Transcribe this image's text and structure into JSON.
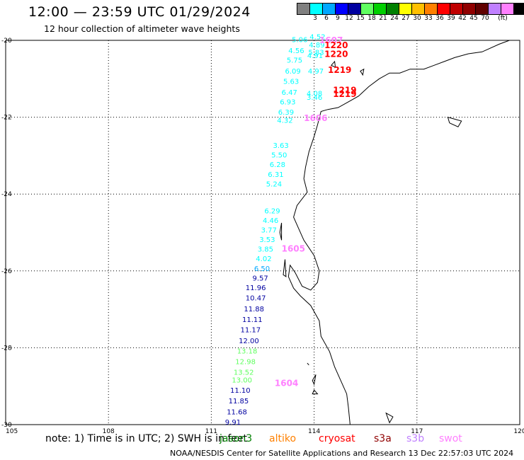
{
  "header": {
    "title": "12:00 — 23:59 UTC 01/29/2024",
    "subtitle": "12 hour collection of altimeter wave heights"
  },
  "legend": {
    "unit": "(ft)",
    "entries": [
      {
        "label": "",
        "color": "#808080"
      },
      {
        "label": "3",
        "color": "#00ffff"
      },
      {
        "label": "6",
        "color": "#00a8ff"
      },
      {
        "label": "9",
        "color": "#0000ff"
      },
      {
        "label": "12",
        "color": "#0000a0"
      },
      {
        "label": "15",
        "color": "#60ff60"
      },
      {
        "label": "18",
        "color": "#00d000"
      },
      {
        "label": "21",
        "color": "#008000"
      },
      {
        "label": "24",
        "color": "#ffff00"
      },
      {
        "label": "27",
        "color": "#ffc000"
      },
      {
        "label": "30",
        "color": "#ff8000"
      },
      {
        "label": "33",
        "color": "#ff0000"
      },
      {
        "label": "36",
        "color": "#c00000"
      },
      {
        "label": "39",
        "color": "#900000"
      },
      {
        "label": "42",
        "color": "#600000"
      },
      {
        "label": "45",
        "color": "#c080ff"
      },
      {
        "label": "70",
        "color": "#ff80ff"
      },
      {
        "label": "",
        "color": "#000000"
      }
    ]
  },
  "map": {
    "lon_range": [
      105,
      120
    ],
    "lat_range": [
      -30,
      -20
    ],
    "lon_ticks": [
      "105",
      "108",
      "111",
      "114",
      "117",
      "120"
    ],
    "lat_ticks": [
      "-20",
      "-22",
      "-24",
      "-26",
      "-28",
      "-30"
    ],
    "tick_values": {
      "lon": [
        105,
        108,
        111,
        114,
        117,
        120
      ],
      "lat": [
        -20,
        -22,
        -24,
        -26,
        -28,
        -30
      ]
    },
    "wave_labels": [
      {
        "text": "4.52",
        "lon": 113.87,
        "lat": -19.97,
        "color": "#00ffff"
      },
      {
        "text": "5.06",
        "lon": 113.35,
        "lat": -20.05,
        "color": "#00ffff"
      },
      {
        "text": "4.89",
        "lon": 113.85,
        "lat": -20.18,
        "color": "#00ffff"
      },
      {
        "text": "4.56",
        "lon": 113.25,
        "lat": -20.33,
        "color": "#00ffff"
      },
      {
        "text": "5.83",
        "lon": 113.83,
        "lat": -20.38,
        "color": "#00ffff"
      },
      {
        "text": "4.91",
        "lon": 113.8,
        "lat": -20.46,
        "color": "#00ffff"
      },
      {
        "text": "5.75",
        "lon": 113.2,
        "lat": -20.58,
        "color": "#00ffff"
      },
      {
        "text": "6.09",
        "lon": 113.15,
        "lat": -20.87,
        "color": "#00ffff"
      },
      {
        "text": "4.97",
        "lon": 113.82,
        "lat": -20.87,
        "color": "#00ffff"
      },
      {
        "text": "5.63",
        "lon": 113.1,
        "lat": -21.13,
        "color": "#00ffff"
      },
      {
        "text": "6.47",
        "lon": 113.05,
        "lat": -21.42,
        "color": "#00ffff"
      },
      {
        "text": "4.08",
        "lon": 113.78,
        "lat": -21.45,
        "color": "#00ffff"
      },
      {
        "text": "3.46",
        "lon": 113.78,
        "lat": -21.55,
        "color": "#00ffff"
      },
      {
        "text": "6.93",
        "lon": 113.0,
        "lat": -21.67,
        "color": "#00ffff"
      },
      {
        "text": "6.39",
        "lon": 112.95,
        "lat": -21.93,
        "color": "#00ffff"
      },
      {
        "text": "4.32",
        "lon": 112.92,
        "lat": -22.15,
        "color": "#00ffff"
      },
      {
        "text": "3.63",
        "lon": 112.8,
        "lat": -22.8,
        "color": "#00ffff"
      },
      {
        "text": "5.50",
        "lon": 112.75,
        "lat": -23.05,
        "color": "#00ffff"
      },
      {
        "text": "6.28",
        "lon": 112.7,
        "lat": -23.3,
        "color": "#00ffff"
      },
      {
        "text": "6.31",
        "lon": 112.65,
        "lat": -23.55,
        "color": "#00ffff"
      },
      {
        "text": "5.24",
        "lon": 112.6,
        "lat": -23.8,
        "color": "#00ffff"
      },
      {
        "text": "6.29",
        "lon": 112.55,
        "lat": -24.5,
        "color": "#00ffff"
      },
      {
        "text": "4.46",
        "lon": 112.5,
        "lat": -24.75,
        "color": "#00ffff"
      },
      {
        "text": "3.77",
        "lon": 112.45,
        "lat": -25.0,
        "color": "#00ffff"
      },
      {
        "text": "3.53",
        "lon": 112.4,
        "lat": -25.25,
        "color": "#00ffff"
      },
      {
        "text": "3.85",
        "lon": 112.35,
        "lat": -25.5,
        "color": "#00ffff"
      },
      {
        "text": "4.02",
        "lon": 112.3,
        "lat": -25.75,
        "color": "#00ffff"
      },
      {
        "text": "6.50",
        "lon": 112.25,
        "lat": -26.0,
        "color": "#00a8ff"
      },
      {
        "text": "9.57",
        "lon": 112.2,
        "lat": -26.25,
        "color": "#0000a0"
      },
      {
        "text": "11.96",
        "lon": 112.0,
        "lat": -26.5,
        "color": "#0000a0"
      },
      {
        "text": "10.47",
        "lon": 112.0,
        "lat": -26.77,
        "color": "#0000a0"
      },
      {
        "text": "11.88",
        "lon": 111.95,
        "lat": -27.05,
        "color": "#0000a0"
      },
      {
        "text": "11.11",
        "lon": 111.9,
        "lat": -27.33,
        "color": "#0000a0"
      },
      {
        "text": "11.17",
        "lon": 111.85,
        "lat": -27.6,
        "color": "#0000a0"
      },
      {
        "text": "12.00",
        "lon": 111.8,
        "lat": -27.88,
        "color": "#0000a0"
      },
      {
        "text": "13.18",
        "lon": 111.75,
        "lat": -28.15,
        "color": "#60ff60"
      },
      {
        "text": "12.98",
        "lon": 111.7,
        "lat": -28.43,
        "color": "#60ff60"
      },
      {
        "text": "13.52",
        "lon": 111.65,
        "lat": -28.7,
        "color": "#60ff60"
      },
      {
        "text": "13.00",
        "lon": 111.6,
        "lat": -28.9,
        "color": "#60ff60"
      },
      {
        "text": "11.10",
        "lon": 111.55,
        "lat": -29.17,
        "color": "#0000a0"
      },
      {
        "text": "11.85",
        "lon": 111.5,
        "lat": -29.45,
        "color": "#0000a0"
      },
      {
        "text": "11.68",
        "lon": 111.45,
        "lat": -29.73,
        "color": "#0000a0"
      },
      {
        "text": "9.91",
        "lon": 111.4,
        "lat": -30.0,
        "color": "#0000a0"
      }
    ],
    "time_labels": [
      {
        "text": "1607",
        "lon": 114.15,
        "lat": -20.07,
        "color": "#ff80ff"
      },
      {
        "text": "1220",
        "lon": 114.3,
        "lat": -20.2,
        "color": "#ff0000"
      },
      {
        "text": "1220",
        "lon": 114.3,
        "lat": -20.43,
        "color": "#ff0000"
      },
      {
        "text": "1219",
        "lon": 114.4,
        "lat": -20.85,
        "color": "#ff0000"
      },
      {
        "text": "1219",
        "lon": 114.55,
        "lat": -21.37,
        "color": "#ff0000"
      },
      {
        "text": "1219",
        "lon": 114.55,
        "lat": -21.47,
        "color": "#ff0000"
      },
      {
        "text": "1606",
        "lon": 113.7,
        "lat": -22.1,
        "color": "#ff80ff"
      },
      {
        "text": "1605",
        "lon": 113.05,
        "lat": -25.5,
        "color": "#ff80ff"
      },
      {
        "text": "1604",
        "lon": 112.85,
        "lat": -29.0,
        "color": "#ff80ff"
      }
    ]
  },
  "note": {
    "text": "note:  1) Time is in UTC;  2) SWH is in feet",
    "satellites": [
      {
        "name": "jason3",
        "color": "#008000"
      },
      {
        "name": "altiko",
        "color": "#ff8000"
      },
      {
        "name": "cryosat",
        "color": "#ff0000"
      },
      {
        "name": "s3a",
        "color": "#900000"
      },
      {
        "name": "s3b",
        "color": "#c080ff"
      },
      {
        "name": "swot",
        "color": "#ff80ff"
      }
    ]
  },
  "footer": {
    "text": "NOAA/NESDIS Center for Satellite Applications and Research    13 Dec 22:57:03 UTC 2024"
  }
}
